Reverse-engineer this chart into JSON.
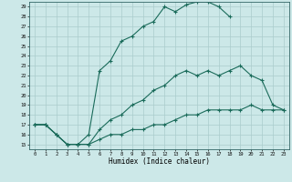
{
  "title": "",
  "xlabel": "Humidex (Indice chaleur)",
  "bg_color": "#cce8e8",
  "grid_color": "#aacccc",
  "line_color": "#1a6b5a",
  "xlim": [
    -0.5,
    23.5
  ],
  "ylim": [
    14.5,
    29.5
  ],
  "xticks": [
    0,
    1,
    2,
    3,
    4,
    5,
    6,
    7,
    8,
    9,
    10,
    11,
    12,
    13,
    14,
    15,
    16,
    17,
    18,
    19,
    20,
    21,
    22,
    23
  ],
  "yticks": [
    15,
    16,
    17,
    18,
    19,
    20,
    21,
    22,
    23,
    24,
    25,
    26,
    27,
    28,
    29
  ],
  "line1_x": [
    0,
    1,
    2,
    3,
    4,
    5,
    6,
    7,
    8,
    9,
    10,
    11,
    12,
    13,
    14,
    15,
    16,
    17,
    18
  ],
  "line1_y": [
    17.0,
    17.0,
    16.0,
    15.0,
    15.0,
    16.0,
    22.5,
    23.5,
    25.5,
    26.0,
    27.0,
    27.5,
    29.0,
    28.5,
    29.2,
    29.5,
    29.5,
    29.0,
    28.0
  ],
  "line2_x": [
    0,
    1,
    2,
    3,
    4,
    5,
    6,
    7,
    8,
    9,
    10,
    11,
    12,
    13,
    14,
    15,
    16,
    17,
    18,
    19,
    20,
    21,
    22,
    23
  ],
  "line2_y": [
    17.0,
    17.0,
    16.0,
    15.0,
    15.0,
    15.0,
    16.5,
    17.5,
    18.0,
    19.0,
    19.5,
    20.5,
    21.0,
    22.0,
    22.5,
    22.0,
    22.5,
    22.0,
    22.5,
    23.0,
    22.0,
    21.5,
    19.0,
    18.5
  ],
  "line3_x": [
    0,
    1,
    2,
    3,
    4,
    5,
    6,
    7,
    8,
    9,
    10,
    11,
    12,
    13,
    14,
    15,
    16,
    17,
    18,
    19,
    20,
    21,
    22,
    23
  ],
  "line3_y": [
    17.0,
    17.0,
    16.0,
    15.0,
    15.0,
    15.0,
    15.5,
    16.0,
    16.0,
    16.5,
    16.5,
    17.0,
    17.0,
    17.5,
    18.0,
    18.0,
    18.5,
    18.5,
    18.5,
    18.5,
    19.0,
    18.5,
    18.5,
    18.5
  ]
}
